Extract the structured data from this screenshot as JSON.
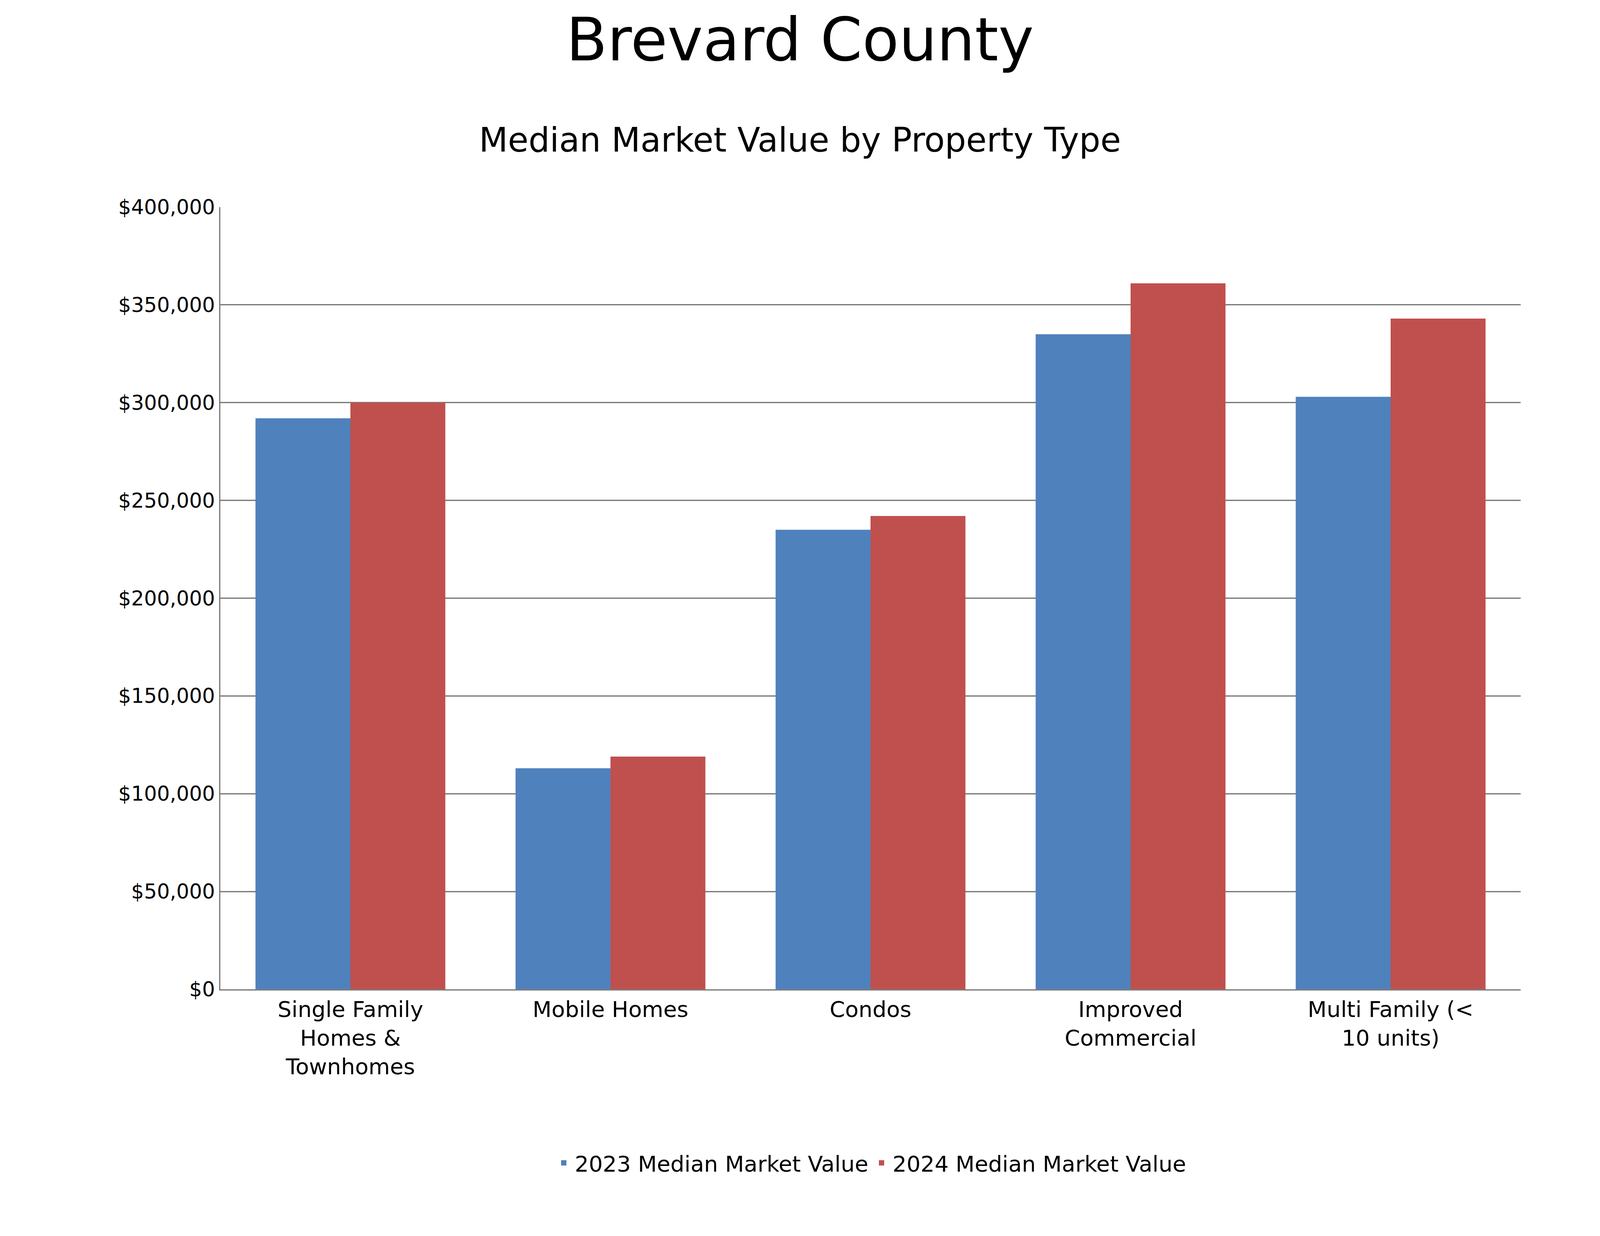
{
  "chart_data": {
    "type": "bar",
    "title": "Brevard County",
    "subtitle": "Median Market Value by Property Type",
    "categories": [
      "Single Family Homes & Townhomes",
      "Mobile Homes",
      "Condos",
      "Improved Commercial",
      "Multi Family (< 10 units)"
    ],
    "series": [
      {
        "name": "2023 Median Market Value",
        "color": "#4f81bd",
        "values": [
          292000,
          113000,
          235000,
          335000,
          303000
        ]
      },
      {
        "name": "2024 Median Market Value",
        "color": "#c0504d",
        "values": [
          300000,
          119000,
          242000,
          361000,
          343000
        ]
      }
    ],
    "ylim": [
      0,
      400000
    ],
    "yticks": [
      {
        "value": 0,
        "label": "$0"
      },
      {
        "value": 50000,
        "label": "$50,000"
      },
      {
        "value": 100000,
        "label": "$100,000"
      },
      {
        "value": 150000,
        "label": "$150,000"
      },
      {
        "value": 200000,
        "label": "$200,000"
      },
      {
        "value": 250000,
        "label": "$250,000"
      },
      {
        "value": 300000,
        "label": "$300,000"
      },
      {
        "value": 350000,
        "label": "$350,000"
      },
      {
        "value": 400000,
        "label": "$400,000"
      }
    ],
    "grid": true,
    "legend": "bottom"
  }
}
